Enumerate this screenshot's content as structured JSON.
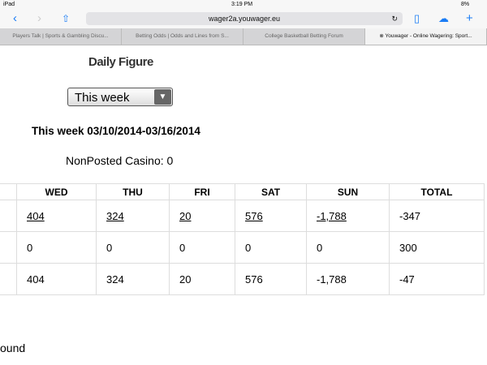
{
  "status": {
    "device": "iPad",
    "time": "3:19 PM",
    "battery": "8%"
  },
  "browser": {
    "url": "wager2a.youwager.eu",
    "tabs": [
      "Players Talk | Sports & Gambling Discu...",
      "Betting Odds | Odds and Lines from S...",
      "College Basketball Betting Forum",
      "Youwager - Online Wagering: Sport..."
    ]
  },
  "page": {
    "title": "Daily Figure",
    "period_select": "This week",
    "week_label": "This week 03/10/2014-03/16/2014",
    "nonposted": "NonPosted Casino: 0",
    "footer_partial": "ound"
  },
  "table": {
    "headers": [
      "",
      "WED",
      "THU",
      "FRI",
      "SAT",
      "SUN",
      "TOTAL"
    ],
    "rows": [
      [
        "",
        "404",
        "324",
        "20",
        "576",
        "-1,788",
        "-347"
      ],
      [
        "",
        "0",
        "0",
        "0",
        "0",
        "0",
        "300"
      ],
      [
        "",
        "404",
        "324",
        "20",
        "576",
        "-1,788",
        "-47"
      ]
    ]
  }
}
